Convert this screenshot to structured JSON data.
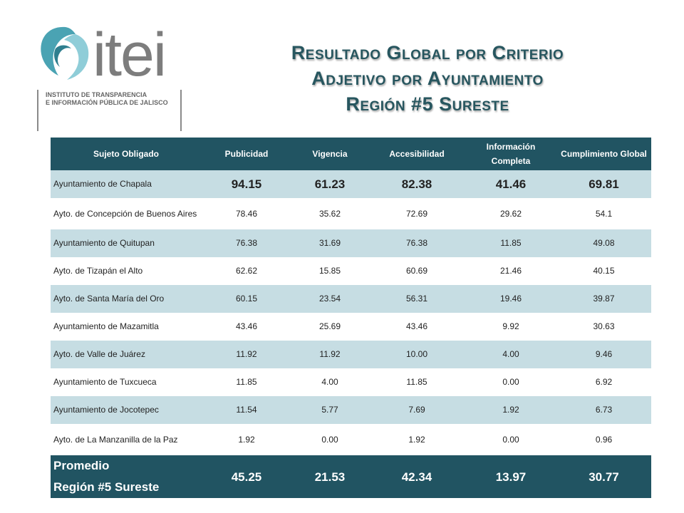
{
  "logo": {
    "wordmark": "itei",
    "subtitle_lines": [
      "INSTITUTO DE TRANSPARENCIA",
      "E INFORMACIÓN PÚBLICA DE JALISCO"
    ]
  },
  "title": {
    "line1": "Resultado Global por Criterio",
    "line2": "Adjetivo por Ayuntamiento",
    "line3": "Región #5 Sureste"
  },
  "table": {
    "headers": [
      "Sujeto Obligado",
      "Publicidad",
      "Vigencia",
      "Accesibilidad",
      "Información Completa",
      "Cumplimiento Global"
    ],
    "rows": [
      {
        "name": "Ayuntamiento de Chapala",
        "publicidad": "94.15",
        "vigencia": "61.23",
        "accesibilidad": "82.38",
        "informacion": "41.46",
        "cumplimiento": "69.81"
      },
      {
        "name": "Ayto. de Concepción de Buenos Aires",
        "publicidad": "78.46",
        "vigencia": "35.62",
        "accesibilidad": "72.69",
        "informacion": "29.62",
        "cumplimiento": "54.1"
      },
      {
        "name": "Ayuntamiento de Quitupan",
        "publicidad": "76.38",
        "vigencia": "31.69",
        "accesibilidad": "76.38",
        "informacion": "11.85",
        "cumplimiento": "49.08"
      },
      {
        "name": "Ayto. de Tizapán el Alto",
        "publicidad": "62.62",
        "vigencia": "15.85",
        "accesibilidad": "60.69",
        "informacion": "21.46",
        "cumplimiento": "40.15"
      },
      {
        "name": "Ayto. de Santa María del Oro",
        "publicidad": "60.15",
        "vigencia": "23.54",
        "accesibilidad": "56.31",
        "informacion": "19.46",
        "cumplimiento": "39.87"
      },
      {
        "name": "Ayuntamiento de Mazamitla",
        "publicidad": "43.46",
        "vigencia": "25.69",
        "accesibilidad": "43.46",
        "informacion": "9.92",
        "cumplimiento": "30.63"
      },
      {
        "name": "Ayto. de Valle de Juárez",
        "publicidad": "11.92",
        "vigencia": "11.92",
        "accesibilidad": "10.00",
        "informacion": "4.00",
        "cumplimiento": "9.46"
      },
      {
        "name": "Ayuntamiento de Tuxcueca",
        "publicidad": "11.85",
        "vigencia": "4.00",
        "accesibilidad": "11.85",
        "informacion": "0.00",
        "cumplimiento": "6.92"
      },
      {
        "name": "Ayuntamiento de Jocotepec",
        "publicidad": "11.54",
        "vigencia": "5.77",
        "accesibilidad": "7.69",
        "informacion": "1.92",
        "cumplimiento": "6.73"
      },
      {
        "name": "Ayto. de La Manzanilla de la Paz",
        "publicidad": "1.92",
        "vigencia": "0.00",
        "accesibilidad": "1.92",
        "informacion": "0.00",
        "cumplimiento": "0.96"
      }
    ],
    "footer": {
      "label_line1": "Promedio",
      "label_line2": "Región #5 Sureste",
      "publicidad": "45.25",
      "vigencia": "21.53",
      "accesibilidad": "42.34",
      "informacion": "13.97",
      "cumplimiento": "30.77"
    }
  },
  "colors": {
    "header_bg": "#215462",
    "row_shade": "#c6dde3",
    "title_text": "#27565f",
    "logo_teal": "#4aa3b3",
    "logo_grey": "#7d7d7d"
  }
}
